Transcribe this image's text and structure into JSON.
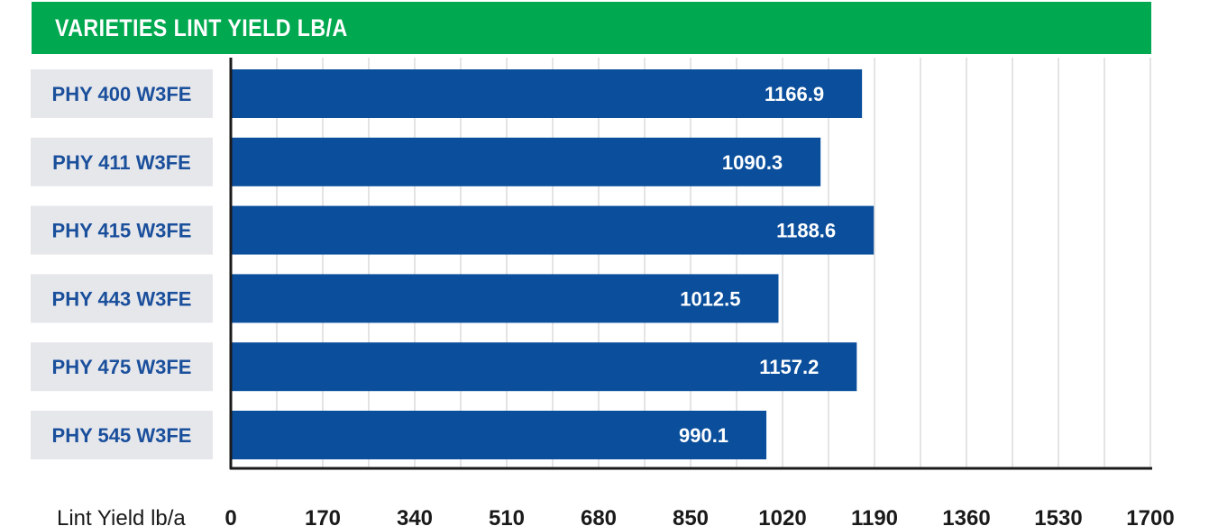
{
  "header": {
    "title": "VARIETIES LINT YIELD LB/A"
  },
  "colors": {
    "header_bg": "#00a84f",
    "bar": "#0b4f9c",
    "label_bg": "#e6e7eb",
    "label_text": "#1a4f9c",
    "grid": "#c8c8c8"
  },
  "chart_data": {
    "type": "bar",
    "orientation": "horizontal",
    "title": "VARIETIES LINT YIELD LB/A",
    "xlabel": "Lint Yield lb/a",
    "ylabel": "",
    "categories": [
      "PHY 400 W3FE",
      "PHY 411 W3FE",
      "PHY 415 W3FE",
      "PHY 443 W3FE",
      "PHY 475 W3FE",
      "PHY 545 W3FE"
    ],
    "values": [
      1166.9,
      1090.3,
      1188.6,
      1012.5,
      1157.2,
      990.1
    ],
    "value_labels": [
      "1166.9",
      "1090.3",
      "1188.6",
      "1012.5",
      "1157.2",
      "990.1"
    ],
    "xlim": [
      0,
      1700
    ],
    "major_ticks": [
      0,
      170,
      340,
      510,
      680,
      850,
      1020,
      1190,
      1360,
      1530,
      1700
    ],
    "tick_labels": [
      "0",
      "170",
      "340",
      "510",
      "680",
      "850",
      "1020",
      "1190",
      "1360",
      "1530",
      "1700"
    ],
    "minor_tick_step": 85,
    "grid": true,
    "legend": "none"
  }
}
